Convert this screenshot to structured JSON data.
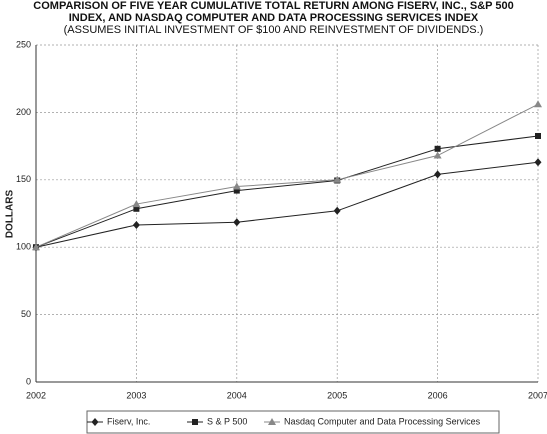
{
  "chart_data": {
    "type": "line",
    "title": [
      "COMPARISON OF FIVE YEAR CUMULATIVE TOTAL RETURN AMONG FISERV, INC., S&P 500",
      "INDEX, AND NASDAQ COMPUTER AND DATA PROCESSING SERVICES INDEX"
    ],
    "subtitle": "(ASSUMES INITIAL INVESTMENT OF $100 AND REINVESTMENT OF DIVIDENDS.)",
    "y_label": "DOLLARS",
    "categories": [
      "2002",
      "2003",
      "2004",
      "2005",
      "2006",
      "2007"
    ],
    "series": [
      {
        "name": "Fiserv, Inc.",
        "color": "#222222",
        "marker": "diamond",
        "values": [
          100,
          116.5,
          118.5,
          127,
          154,
          163
        ]
      },
      {
        "name": "S & P 500",
        "color": "#222222",
        "marker": "square",
        "values": [
          100,
          128.5,
          142,
          149.5,
          173,
          182.5
        ]
      },
      {
        "name": "Nasdaq Computer and Data Processing Services",
        "color": "#888888",
        "marker": "triangle",
        "values": [
          100,
          132,
          145,
          150,
          168,
          206
        ]
      }
    ],
    "ylim": [
      0,
      250
    ],
    "yticks": [
      0,
      50,
      100,
      150,
      200,
      250
    ],
    "grid": true,
    "legend": "bottom"
  }
}
